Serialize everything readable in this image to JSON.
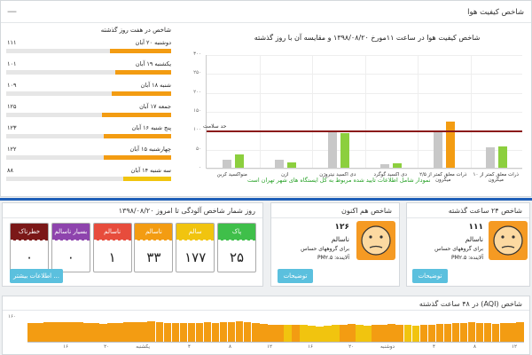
{
  "top_panel": {
    "title": "شاخص کیفیت هوا",
    "collapse_icon": "minus-icon",
    "days_title": "شاخص در هفت روز گذشته",
    "days": [
      {
        "label": "دوشنبه ۲۰ آبان",
        "value": "۱۱۱",
        "level": 0.37,
        "color": "#f39c12"
      },
      {
        "label": "یکشنبه ۱۹ آبان",
        "value": "۱۰۱",
        "level": 0.34,
        "color": "#f39c12"
      },
      {
        "label": "شنبه ۱۸ آبان",
        "value": "۱۰۹",
        "level": 0.36,
        "color": "#f39c12"
      },
      {
        "label": "جمعه ۱۷ آبان",
        "value": "۱۲۵",
        "level": 0.42,
        "color": "#f39c12"
      },
      {
        "label": "پنج شنبه ۱۶ آبان",
        "value": "۱۲۳",
        "level": 0.41,
        "color": "#f39c12"
      },
      {
        "label": "چهارشنبه ۱۵ آبان",
        "value": "۱۲۲",
        "level": 0.41,
        "color": "#f39c12"
      },
      {
        "label": "سه شنبه ۱۴ آبان",
        "value": "۸۸",
        "level": 0.29,
        "color": "#f1c40f"
      }
    ]
  },
  "chart_data": {
    "type": "bar",
    "title": "شاخص کیفیت هوا در ساعت ۱۱مورخ ۱۳۹۸/۰۸/۲۰ و مقایسه آن با روز گذشته",
    "categories": [
      "منواکسید کربن",
      "ازن",
      "دی اکسید نیتروژن",
      "دی اکسید گوگرد",
      "ذرات معلق کمتر از ۲/۵ میکرون",
      "ذرات معلق کمتر از ۱۰ میکرون"
    ],
    "series": [
      {
        "values": [
          22,
          22,
          93,
          10,
          98,
          53
        ],
        "color": "#c8c8c8"
      },
      {
        "values": [
          35,
          15,
          92,
          12,
          123,
          56
        ],
        "color": "#8ccf3e"
      }
    ],
    "highlight": {
      "index": 4,
      "color": "#f39c12"
    },
    "threshold": {
      "value": 100,
      "label": "حد سلامت",
      "color": "#8b1a1a"
    },
    "yticks": [
      "۳۰۰",
      "۲۵۰",
      "۲۰۰",
      "۱۵۰",
      "۱۰۰",
      "۵۰",
      "۰"
    ],
    "ylim": [
      0,
      300
    ],
    "grid": true,
    "note": "نمودار شامل اطلاعات تایید شده مربوط به کل ایستگاه های شهر تهران است"
  },
  "count_panel": {
    "title": "روز شمار شاخص آلودگی تا امروز ۱۳۹۸/۰۸/۲۰",
    "cells": [
      {
        "label": "پاک",
        "value": "۲۵",
        "color": "#3fbf4a"
      },
      {
        "label": "سالم",
        "value": "۱۷۷",
        "color": "#f1c40f"
      },
      {
        "label": "ناسالم",
        "value": "۳۳",
        "color": "#f39c12"
      },
      {
        "label": "ناسالم",
        "value": "۱",
        "color": "#e74c3c"
      },
      {
        "label": "بسیار ناسالم",
        "value": "۰",
        "color": "#8e44ad"
      },
      {
        "label": "خطرناک",
        "value": "۰",
        "color": "#7b1818"
      }
    ],
    "more_button": "اطلاعات بیشتر ..."
  },
  "now_panel": {
    "title": "شاخص هم اکنون",
    "value": "۱۲۶",
    "status": "ناسالم",
    "group": "برای گروههای حساس",
    "pollutant": "آلاینده: PM۲.۵",
    "button": "توضیحات"
  },
  "day_panel": {
    "title": "شاخص ۲۴ ساعت گذشته",
    "value": "۱۱۱",
    "status": "ناسالم",
    "group": "برای گروههای حساس",
    "pollutant": "آلاینده: PM۲.۵",
    "button": "توضیحات"
  },
  "hours_panel": {
    "title": "شاخص (AQI) در ۴۸ ساعت گذشته",
    "ytick": "۱۶۰",
    "xlabels": [
      "۱۲",
      "۸",
      "۴",
      "دوشنبه",
      "۲۰",
      "۱۶",
      "۱۲",
      "۸",
      "۴",
      "یکشنبه",
      "۲۰",
      "۱۶"
    ],
    "values": [
      112,
      114,
      118,
      116,
      115,
      117,
      120,
      113,
      110,
      108,
      111,
      112,
      115,
      118,
      119,
      121,
      116,
      114,
      113,
      112,
      110,
      111,
      115,
      113,
      118,
      120,
      122,
      117,
      112,
      108,
      104,
      101,
      99,
      103,
      100,
      95,
      93,
      97,
      100,
      102,
      105,
      99,
      98,
      101,
      104,
      106,
      103,
      100,
      98,
      101,
      103,
      106,
      109,
      111,
      113,
      115,
      112,
      110,
      108,
      111,
      114,
      116
    ],
    "orange": "#f39c12",
    "yellow": "#f1c40f"
  }
}
